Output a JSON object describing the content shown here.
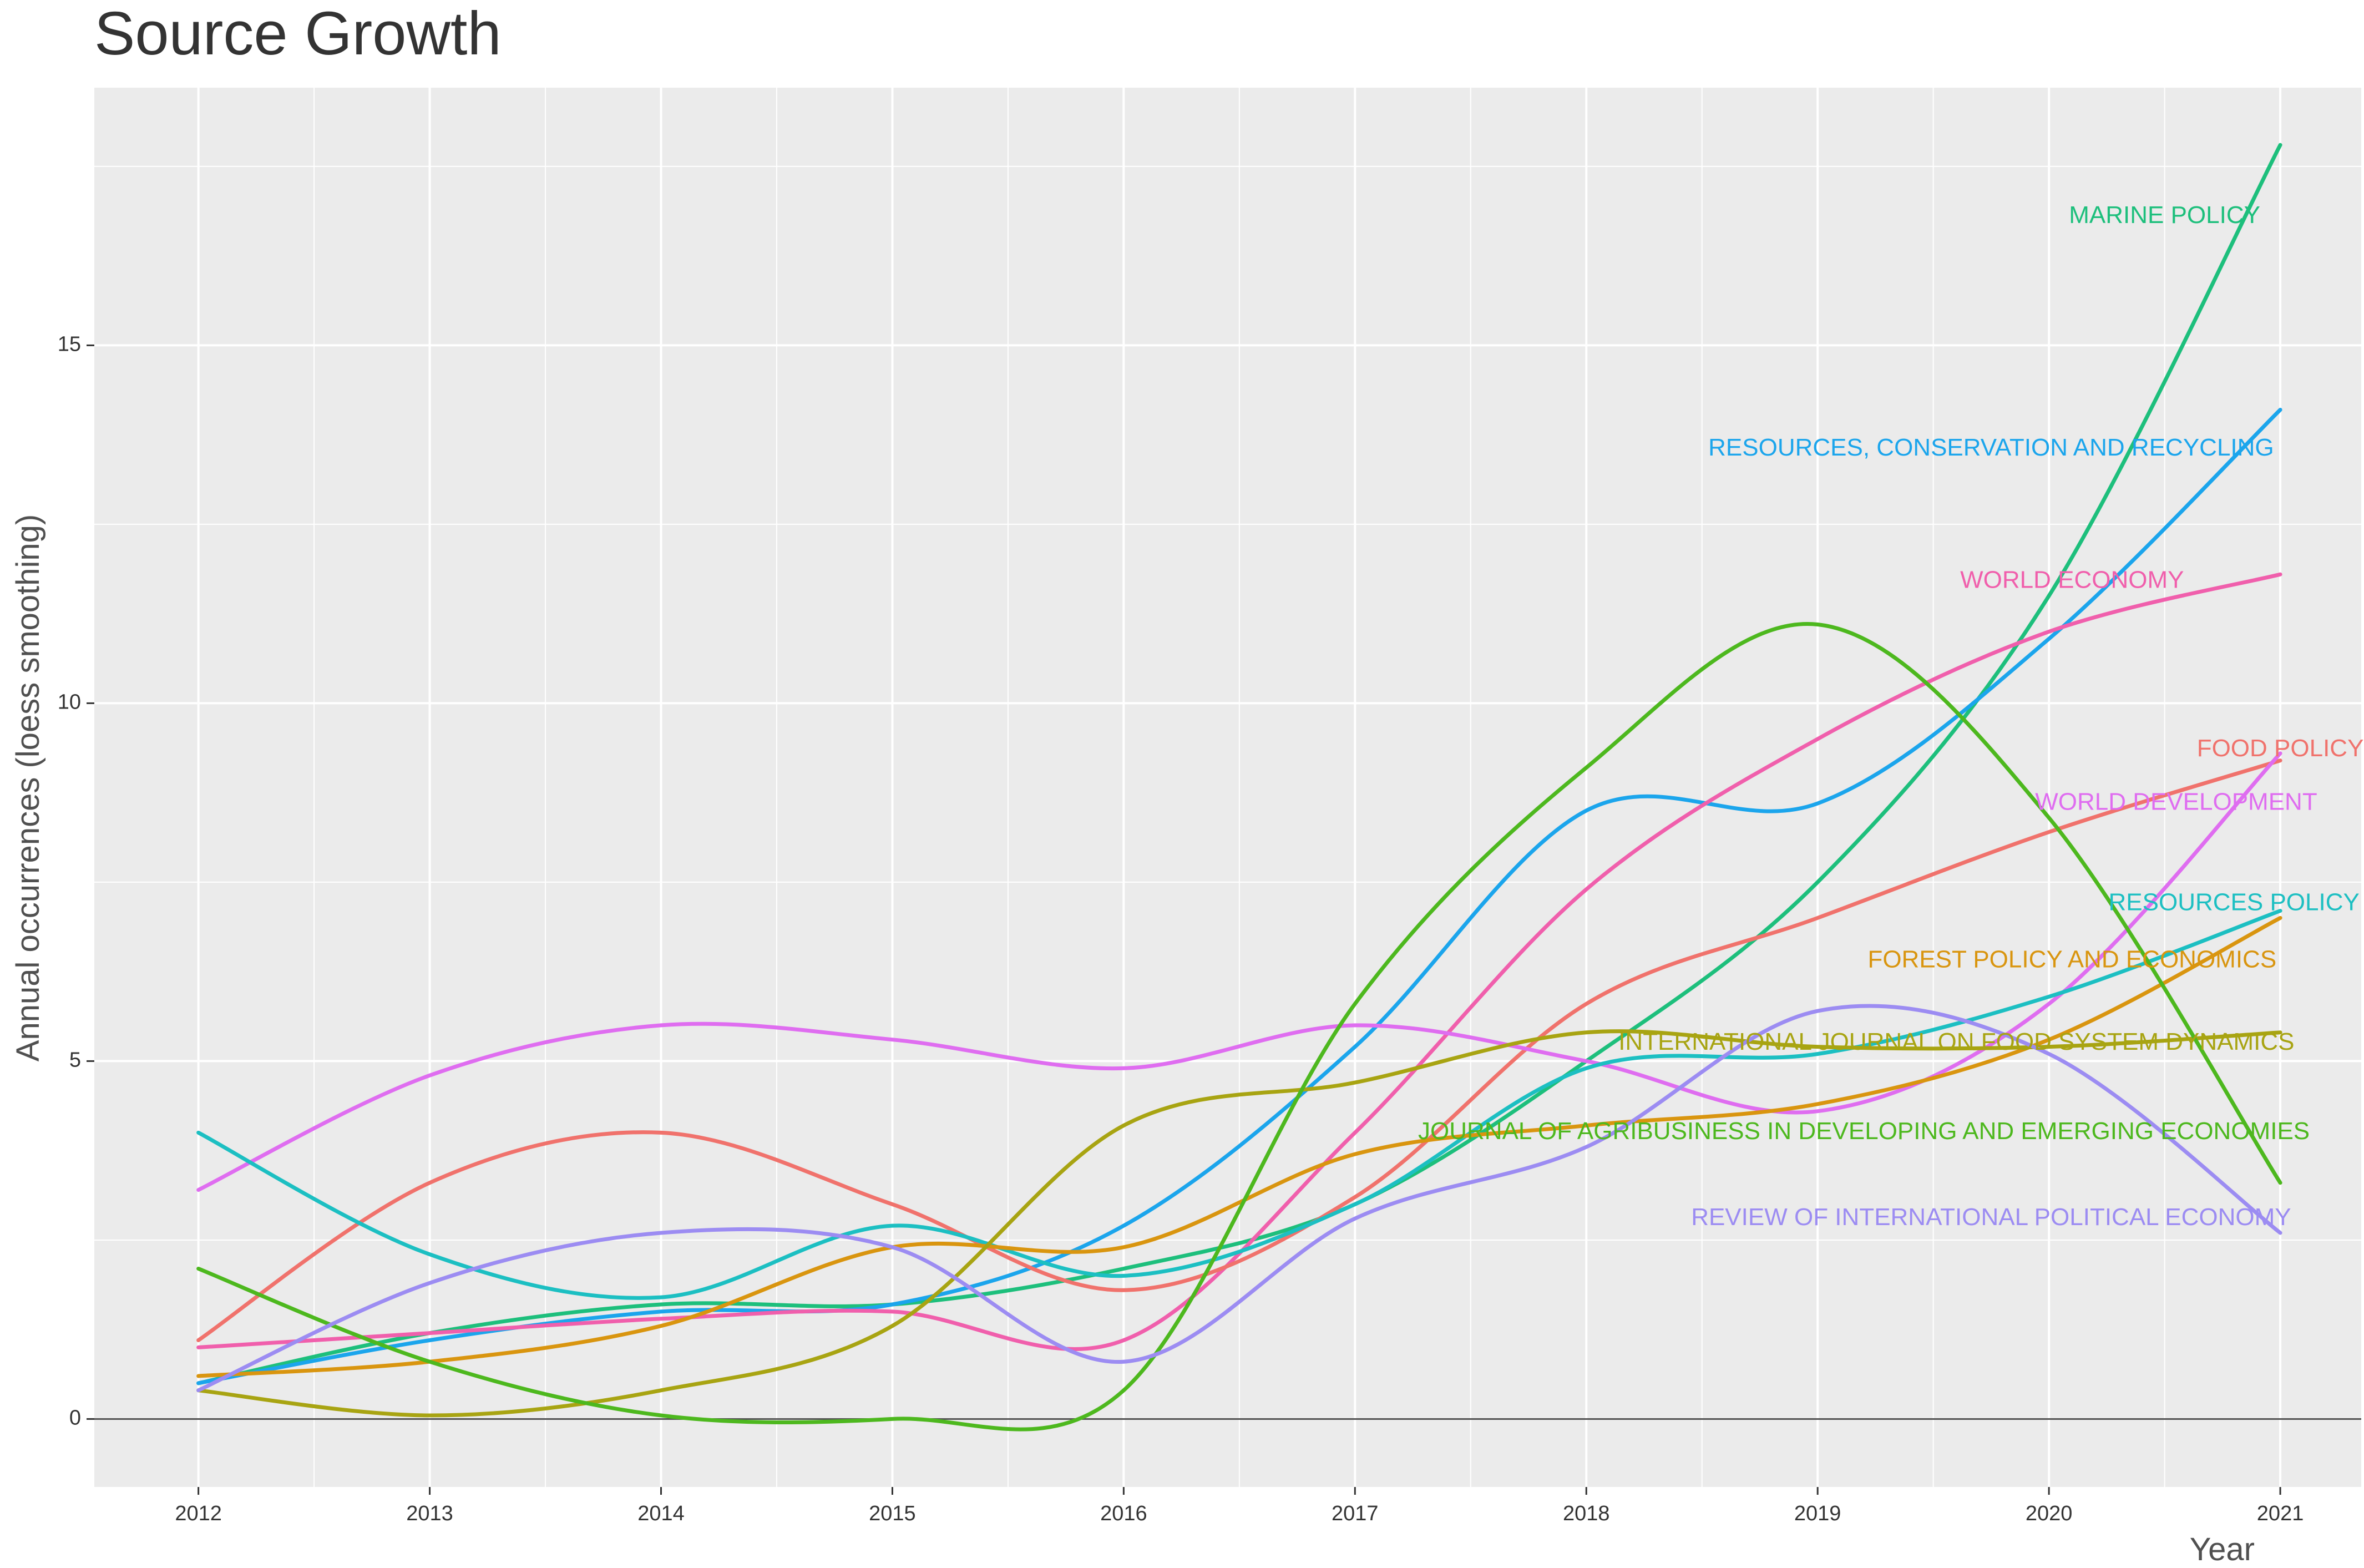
{
  "chart_data": {
    "type": "line",
    "title": "Source Growth",
    "xlabel": "Year",
    "ylabel": "Annual occurrences (loess smoothing)",
    "x": [
      2012,
      2013,
      2014,
      2015,
      2016,
      2017,
      2018,
      2019,
      2020,
      2021
    ],
    "xlim": [
      2011.55,
      2021.35
    ],
    "ylim": [
      -0.95,
      18.6
    ],
    "x_ticks": [
      "2012",
      "2013",
      "2014",
      "2015",
      "2016",
      "2017",
      "2018",
      "2019",
      "2020",
      "2021"
    ],
    "y_ticks": [
      {
        "value": 0,
        "label": "0"
      },
      {
        "value": 5,
        "label": "5"
      },
      {
        "value": 10,
        "label": "10"
      },
      {
        "value": 15,
        "label": "15"
      }
    ],
    "grid": true,
    "legend": "none (labels placed at line ends)",
    "series": [
      {
        "name": "MARINE POLICY",
        "color": "#1dbf7c",
        "points": [
          [
            2012,
            0.5
          ],
          [
            2013,
            1.2
          ],
          [
            2014,
            1.6
          ],
          [
            2015,
            1.6
          ],
          [
            2016,
            2.1
          ],
          [
            2017,
            3.0
          ],
          [
            2018,
            5.0
          ],
          [
            2019,
            7.5
          ],
          [
            2020,
            11.5
          ],
          [
            2021,
            17.8
          ]
        ],
        "label_x": 2020.5,
        "label_y": 16.8
      },
      {
        "name": "RESOURCES, CONSERVATION AND RECYCLING",
        "color": "#1ba5ec",
        "points": [
          [
            2012,
            0.5
          ],
          [
            2013,
            1.1
          ],
          [
            2014,
            1.5
          ],
          [
            2015,
            1.6
          ],
          [
            2016,
            2.7
          ],
          [
            2017,
            5.2
          ],
          [
            2018,
            8.5
          ],
          [
            2019,
            8.6
          ],
          [
            2020,
            10.9
          ],
          [
            2021,
            14.1
          ]
        ],
        "label_x": 2019.75,
        "label_y": 13.55
      },
      {
        "name": "WORLD ECONOMY",
        "color": "#f05fac",
        "points": [
          [
            2012,
            1.0
          ],
          [
            2013,
            1.2
          ],
          [
            2014,
            1.4
          ],
          [
            2015,
            1.5
          ],
          [
            2016,
            1.1
          ],
          [
            2017,
            4.0
          ],
          [
            2018,
            7.4
          ],
          [
            2019,
            9.5
          ],
          [
            2020,
            11.0
          ],
          [
            2021,
            11.8
          ]
        ],
        "label_x": 2020.1,
        "label_y": 11.7
      },
      {
        "name": "FOOD POLICY",
        "color": "#f0726c",
        "points": [
          [
            2012,
            1.1
          ],
          [
            2013,
            3.3
          ],
          [
            2014,
            4.0
          ],
          [
            2015,
            3.0
          ],
          [
            2016,
            1.8
          ],
          [
            2017,
            3.1
          ],
          [
            2018,
            5.8
          ],
          [
            2019,
            7.0
          ],
          [
            2020,
            8.2
          ],
          [
            2021,
            9.2
          ]
        ],
        "label_x": 2021.0,
        "label_y": 9.35
      },
      {
        "name": "WORLD DEVELOPMENT",
        "color": "#df6df0",
        "points": [
          [
            2012,
            3.2
          ],
          [
            2013,
            4.8
          ],
          [
            2014,
            5.5
          ],
          [
            2015,
            5.3
          ],
          [
            2016,
            4.9
          ],
          [
            2017,
            5.5
          ],
          [
            2018,
            5.0
          ],
          [
            2019,
            4.3
          ],
          [
            2020,
            5.8
          ],
          [
            2021,
            9.3
          ]
        ],
        "label_x": 2020.55,
        "label_y": 8.6
      },
      {
        "name": "RESOURCES POLICY",
        "color": "#1cbfc2",
        "points": [
          [
            2012,
            4.0
          ],
          [
            2013,
            2.3
          ],
          [
            2014,
            1.7
          ],
          [
            2015,
            2.7
          ],
          [
            2016,
            2.0
          ],
          [
            2017,
            3.0
          ],
          [
            2018,
            4.9
          ],
          [
            2019,
            5.1
          ],
          [
            2020,
            5.9
          ],
          [
            2021,
            7.1
          ]
        ],
        "label_x": 2020.8,
        "label_y": 7.2
      },
      {
        "name": "FOREST POLICY AND ECONOMICS",
        "color": "#d9950f",
        "points": [
          [
            2012,
            0.6
          ],
          [
            2013,
            0.8
          ],
          [
            2014,
            1.3
          ],
          [
            2015,
            2.4
          ],
          [
            2016,
            2.4
          ],
          [
            2017,
            3.7
          ],
          [
            2018,
            4.1
          ],
          [
            2019,
            4.4
          ],
          [
            2020,
            5.3
          ],
          [
            2021,
            7.0
          ]
        ],
        "label_x": 2020.1,
        "label_y": 6.4
      },
      {
        "name": "INTERNATIONAL JOURNAL ON FOOD SYSTEM DYNAMICS",
        "color": "#a8a412",
        "points": [
          [
            2012,
            0.4
          ],
          [
            2013,
            0.05
          ],
          [
            2014,
            0.4
          ],
          [
            2015,
            1.3
          ],
          [
            2016,
            4.1
          ],
          [
            2017,
            4.7
          ],
          [
            2018,
            5.4
          ],
          [
            2019,
            5.2
          ],
          [
            2020,
            5.2
          ],
          [
            2021,
            5.4
          ]
        ],
        "label_x": 2019.6,
        "label_y": 5.25
      },
      {
        "name": "JOURNAL OF AGRIBUSINESS IN DEVELOPING AND EMERGING ECONOMIES",
        "color": "#4db81e",
        "points": [
          [
            2012,
            2.1
          ],
          [
            2013,
            0.8
          ],
          [
            2014,
            0.05
          ],
          [
            2015,
            0.0
          ],
          [
            2016,
            0.4
          ],
          [
            2017,
            5.8
          ],
          [
            2018,
            9.1
          ],
          [
            2019,
            11.1
          ],
          [
            2020,
            8.4
          ],
          [
            2021,
            3.3
          ]
        ],
        "label_x": 2019.2,
        "label_y": 4.0
      },
      {
        "name": "REVIEW OF INTERNATIONAL POLITICAL ECONOMY",
        "color": "#9c8cf2",
        "points": [
          [
            2012,
            0.4
          ],
          [
            2013,
            1.9
          ],
          [
            2014,
            2.6
          ],
          [
            2015,
            2.4
          ],
          [
            2016,
            0.8
          ],
          [
            2017,
            2.8
          ],
          [
            2018,
            3.8
          ],
          [
            2019,
            5.7
          ],
          [
            2020,
            5.1
          ],
          [
            2021,
            2.6
          ]
        ],
        "label_x": 2019.75,
        "label_y": 2.8
      }
    ]
  }
}
